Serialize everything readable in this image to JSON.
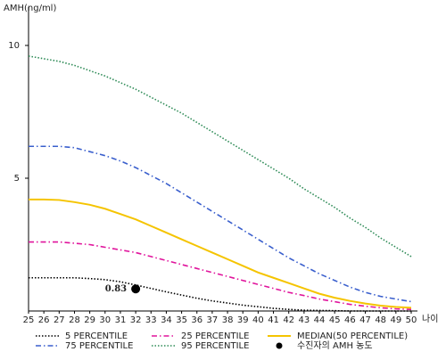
{
  "chart_data": {
    "type": "line",
    "y_label": "AMH(ng/ml)",
    "x_label": "나이",
    "x": [
      25,
      26,
      27,
      28,
      29,
      30,
      31,
      32,
      33,
      34,
      35,
      36,
      37,
      38,
      39,
      40,
      41,
      42,
      43,
      44,
      45,
      46,
      47,
      48,
      49,
      50
    ],
    "xlim": [
      25,
      50
    ],
    "xticks": [
      25,
      26,
      27,
      28,
      29,
      30,
      31,
      32,
      33,
      34,
      35,
      36,
      37,
      38,
      39,
      40,
      41,
      42,
      43,
      44,
      45,
      46,
      47,
      48,
      49,
      50
    ],
    "ylim": [
      0,
      11.4
    ],
    "yticks": [
      5,
      10
    ],
    "grid": false,
    "series": [
      {
        "name": "5 PERCENTILE",
        "color": "#000000",
        "style": "dotted",
        "values": [
          1.25,
          1.25,
          1.25,
          1.25,
          1.22,
          1.18,
          1.1,
          0.98,
          0.85,
          0.72,
          0.6,
          0.48,
          0.38,
          0.3,
          0.22,
          0.16,
          0.1,
          0.06,
          0.03,
          0.02,
          0.01,
          0,
          0,
          0,
          0,
          0
        ]
      },
      {
        "name": "75 PERCENTILE",
        "color": "#3a5fcd",
        "style": "dashdot",
        "values": [
          6.2,
          6.2,
          6.2,
          6.15,
          6.0,
          5.85,
          5.65,
          5.4,
          5.1,
          4.8,
          4.45,
          4.1,
          3.75,
          3.4,
          3.05,
          2.7,
          2.35,
          2.0,
          1.7,
          1.4,
          1.15,
          0.9,
          0.7,
          0.55,
          0.45,
          0.35
        ]
      },
      {
        "name": "25 PERCENTILE",
        "color": "#e0149c",
        "style": "dashdot",
        "values": [
          2.6,
          2.6,
          2.6,
          2.55,
          2.5,
          2.4,
          2.3,
          2.2,
          2.05,
          1.9,
          1.75,
          1.6,
          1.45,
          1.3,
          1.15,
          1.0,
          0.85,
          0.7,
          0.58,
          0.45,
          0.35,
          0.25,
          0.18,
          0.12,
          0.08,
          0.06
        ]
      },
      {
        "name": "95 PERCENTILE",
        "color": "#2e8b57",
        "style": "dotted",
        "values": [
          9.6,
          9.5,
          9.4,
          9.25,
          9.05,
          8.85,
          8.6,
          8.35,
          8.05,
          7.75,
          7.45,
          7.1,
          6.75,
          6.4,
          6.05,
          5.7,
          5.35,
          5.0,
          4.6,
          4.25,
          3.9,
          3.5,
          3.15,
          2.75,
          2.4,
          2.05
        ]
      },
      {
        "name": "MEDIAN(50 PERCENTILE)",
        "color": "#f5c400",
        "style": "solid",
        "values": [
          4.2,
          4.2,
          4.18,
          4.1,
          4.0,
          3.85,
          3.65,
          3.45,
          3.2,
          2.95,
          2.7,
          2.45,
          2.2,
          1.95,
          1.7,
          1.45,
          1.25,
          1.05,
          0.85,
          0.65,
          0.5,
          0.38,
          0.28,
          0.2,
          0.15,
          0.12
        ]
      }
    ],
    "marker": {
      "name": "수진자의 AMH 농도",
      "color": "#000000",
      "x": 32,
      "y": 0.83
    }
  }
}
